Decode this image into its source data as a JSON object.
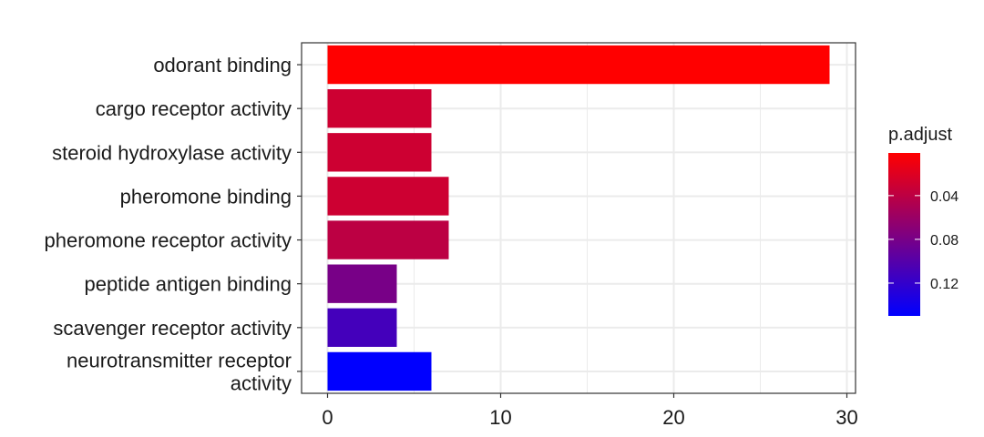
{
  "chart_data": {
    "type": "bar",
    "orientation": "horizontal",
    "categories": [
      "odorant binding",
      "cargo receptor activity",
      "steroid hydroxylase activity",
      "pheromone binding",
      "pheromone receptor activity",
      "peptide antigen binding",
      "scavenger receptor activity",
      "neurotransmitter receptor activity"
    ],
    "category_lines": [
      [
        "odorant binding"
      ],
      [
        "cargo receptor activity"
      ],
      [
        "steroid hydroxylase activity"
      ],
      [
        "pheromone binding"
      ],
      [
        "pheromone receptor activity"
      ],
      [
        "peptide antigen binding"
      ],
      [
        "scavenger receptor activity"
      ],
      [
        "neurotransmitter receptor",
        "activity"
      ]
    ],
    "values": [
      29,
      6,
      6,
      7,
      7,
      4,
      4,
      6
    ],
    "p_adjust": [
      0.001,
      0.03,
      0.03,
      0.03,
      0.04,
      0.08,
      0.11,
      0.15
    ],
    "xlim": [
      -1.5,
      30.5
    ],
    "xticks": [
      0,
      10,
      20,
      30
    ],
    "xlabel": "",
    "ylabel": "",
    "grid": true,
    "legend": {
      "title": "p.adjust",
      "position": "right",
      "low_color": "#ff0000",
      "high_color": "#0000ff",
      "range": [
        0.001,
        0.15
      ],
      "ticks": [
        0.04,
        0.08,
        0.12
      ],
      "tick_labels": [
        "0.04",
        "0.08",
        "0.12"
      ]
    }
  }
}
